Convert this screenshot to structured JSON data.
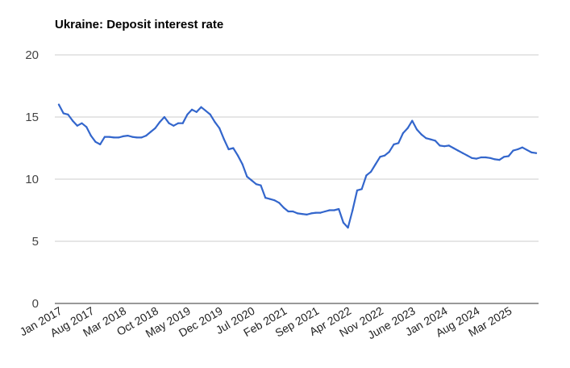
{
  "chart_data": {
    "type": "line",
    "title": "Ukraine: Deposit interest rate",
    "xlabel": "",
    "ylabel": "",
    "ylim": [
      0,
      20
    ],
    "yticks": [
      "0",
      "5",
      "10",
      "15",
      "20"
    ],
    "xtick_labels": [
      "Jan 2017",
      "Aug 2017",
      "Mar 2018",
      "Oct 2018",
      "May 2019",
      "Dec 2019",
      "Jul 2020",
      "Feb 2021",
      "Sep 2021",
      "Apr 2022",
      "Nov 2022",
      "June 2023",
      "Jan 2024",
      "Aug 2024",
      "Mar 2025"
    ],
    "grid": true,
    "legend": "none",
    "line_color": "#3366cc",
    "series": [
      {
        "x": [
          "2017-01",
          "2017-02",
          "2017-03",
          "2017-04",
          "2017-05",
          "2017-06",
          "2017-07",
          "2017-08",
          "2017-09",
          "2017-10",
          "2017-11",
          "2017-12",
          "2018-01",
          "2018-02",
          "2018-03",
          "2018-04",
          "2018-05",
          "2018-06",
          "2018-07",
          "2018-08",
          "2018-09",
          "2018-10",
          "2018-11",
          "2018-12",
          "2019-01",
          "2019-02",
          "2019-03",
          "2019-04",
          "2019-05",
          "2019-06",
          "2019-07",
          "2019-08",
          "2019-09",
          "2019-10",
          "2019-11",
          "2019-12",
          "2020-01",
          "2020-02",
          "2020-03",
          "2020-04",
          "2020-05",
          "2020-06",
          "2020-07",
          "2020-08",
          "2020-09",
          "2020-10",
          "2020-11",
          "2020-12",
          "2021-01",
          "2021-02",
          "2021-03",
          "2021-04",
          "2021-05",
          "2021-06",
          "2021-07",
          "2021-08",
          "2021-09",
          "2021-10",
          "2021-11",
          "2021-12",
          "2022-01",
          "2022-02",
          "2022-03",
          "2022-04",
          "2022-05",
          "2022-06",
          "2022-07",
          "2022-08",
          "2022-09",
          "2022-10",
          "2022-11",
          "2022-12",
          "2023-01",
          "2023-02",
          "2023-03",
          "2023-04",
          "2023-05",
          "2023-06",
          "2023-07",
          "2023-08",
          "2023-09",
          "2023-10",
          "2023-11",
          "2023-12",
          "2024-01",
          "2024-02",
          "2024-03",
          "2024-04",
          "2024-05",
          "2024-06",
          "2024-07",
          "2024-08",
          "2024-09",
          "2024-10",
          "2024-11",
          "2024-12",
          "2025-01",
          "2025-02",
          "2025-03",
          "2025-04",
          "2025-05",
          "2025-06",
          "2025-07",
          "2025-08",
          "2025-09"
        ],
        "values": [
          16.0,
          15.3,
          15.2,
          14.7,
          14.3,
          14.5,
          14.2,
          13.5,
          13.0,
          12.8,
          13.4,
          13.4,
          13.35,
          13.35,
          13.45,
          13.5,
          13.4,
          13.35,
          13.35,
          13.5,
          13.8,
          14.1,
          14.6,
          15.0,
          14.5,
          14.3,
          14.5,
          14.5,
          15.2,
          15.6,
          15.4,
          15.8,
          15.5,
          15.2,
          14.6,
          14.1,
          13.2,
          12.4,
          12.5,
          11.9,
          11.2,
          10.2,
          9.9,
          9.6,
          9.5,
          8.5,
          8.4,
          8.3,
          8.1,
          7.7,
          7.4,
          7.4,
          7.25,
          7.2,
          7.15,
          7.25,
          7.3,
          7.3,
          7.4,
          7.5,
          7.5,
          7.6,
          6.5,
          6.1,
          7.5,
          9.1,
          9.2,
          10.3,
          10.6,
          11.2,
          11.8,
          11.9,
          12.2,
          12.8,
          12.9,
          13.7,
          14.1,
          14.7,
          14.0,
          13.6,
          13.3,
          13.2,
          13.1,
          12.7,
          12.65,
          12.7,
          12.5,
          12.3,
          12.1,
          11.9,
          11.7,
          11.65,
          11.75,
          11.75,
          11.7,
          11.6,
          11.55,
          11.8,
          11.85,
          12.3,
          12.4,
          12.55,
          12.35,
          12.15,
          12.1
        ]
      }
    ]
  }
}
